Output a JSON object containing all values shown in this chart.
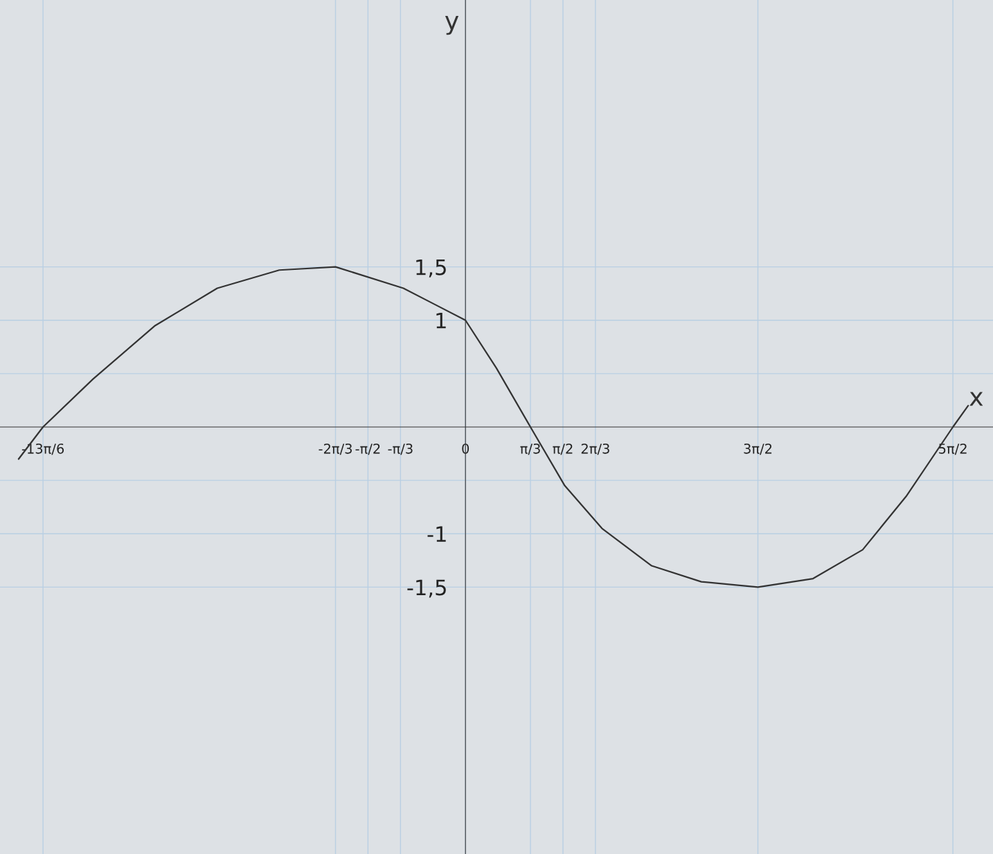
{
  "chart_data": {
    "type": "line",
    "xlabel": "x",
    "ylabel": "y",
    "grid": true,
    "x": [
      -7.2,
      -6.807,
      -6.0,
      -5.0,
      -4.0,
      -3.0,
      -2.094,
      -1.0,
      -0.5,
      0,
      0.5,
      1.047,
      1.6,
      2.2,
      3.0,
      3.8,
      4.712,
      5.6,
      6.4,
      7.1,
      7.854,
      8.1
    ],
    "series": [
      {
        "color": "#333333",
        "values": [
          -0.3,
          0,
          0.45,
          0.95,
          1.3,
          1.47,
          1.5,
          1.3,
          1.15,
          1,
          0.55,
          0,
          -0.55,
          -0.95,
          -1.3,
          -1.45,
          -1.5,
          -1.42,
          -1.15,
          -0.65,
          0,
          0.2
        ]
      }
    ],
    "xlim": [
      -7.5,
      8.5
    ],
    "ylim": [
      -4,
      4
    ],
    "xticks": [
      {
        "value": -6.807,
        "label": "-13π/6"
      },
      {
        "value": -2.094,
        "label": "-2π/3"
      },
      {
        "value": -1.571,
        "label": "-π/2"
      },
      {
        "value": -1.047,
        "label": "-π/3"
      },
      0,
      {
        "value": 1.047,
        "label": "π/3"
      },
      {
        "value": 1.571,
        "label": "π/2"
      },
      {
        "value": 2.094,
        "label": "2π/3"
      },
      {
        "value": 4.712,
        "label": "3π/2"
      },
      {
        "value": 7.854,
        "label": "5π/2"
      }
    ],
    "yticks": [
      {
        "value": -1.5,
        "label": "-1,5"
      },
      -1,
      {
        "value": -0.5,
        "label": null
      },
      {
        "value": 0.5,
        "label": null
      },
      1,
      {
        "value": 1.5,
        "label": "1,5"
      }
    ]
  }
}
